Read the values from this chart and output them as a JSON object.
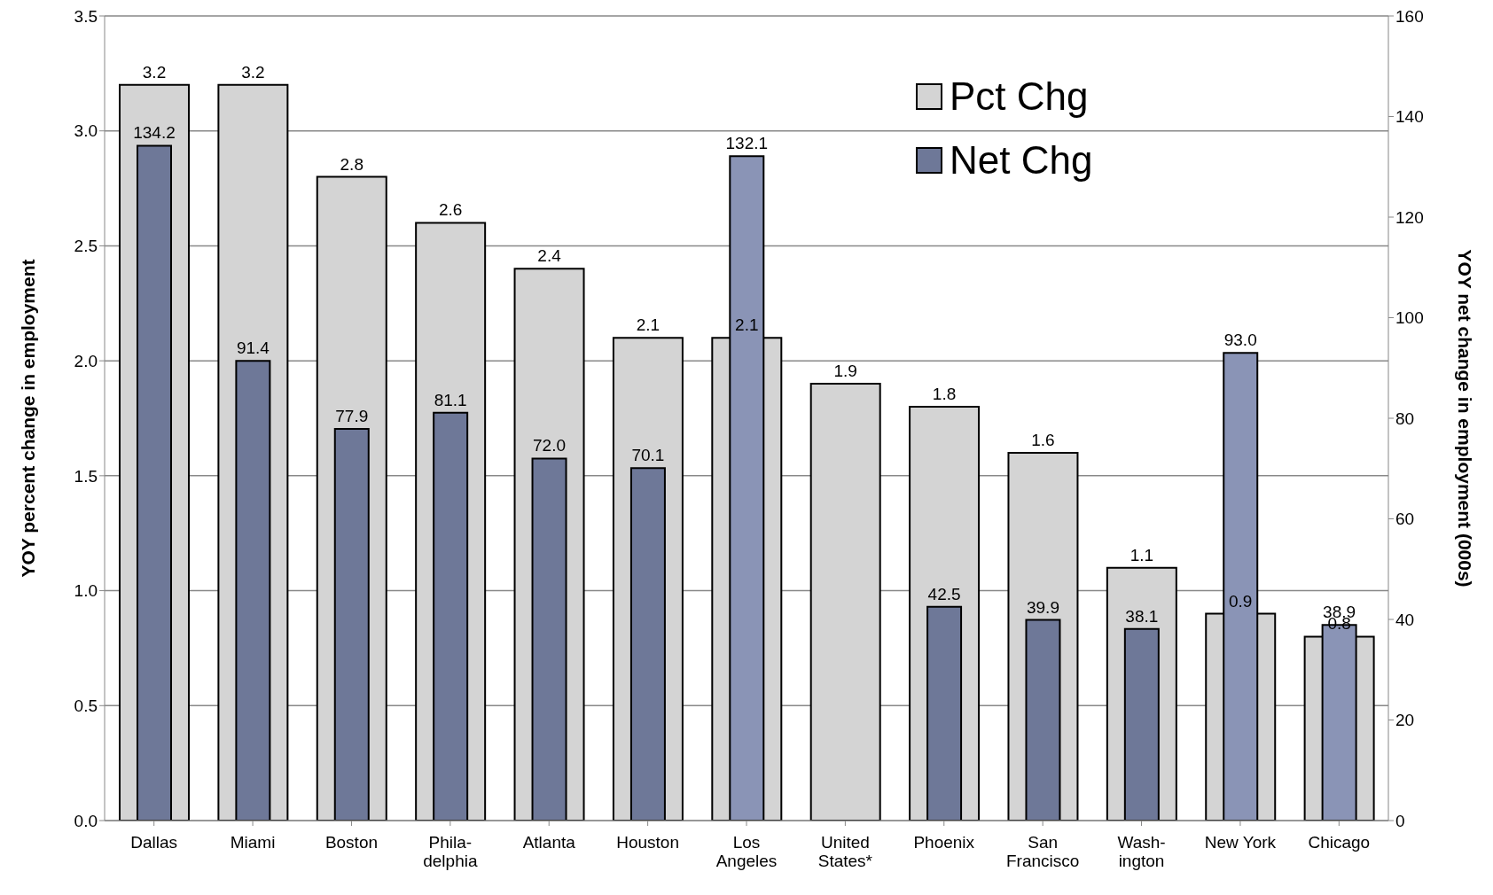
{
  "chart_data": {
    "type": "bar",
    "ylabel": "YOY percent change in employment",
    "y2label": "YOY net change in employment (000s)",
    "categories": [
      "Dallas",
      "Miami",
      "Boston",
      "Phila-\ndelphia",
      "Atlanta",
      "Houston",
      "Los\nAngeles",
      "United\nStates*",
      "Phoenix",
      "San\nFrancisco",
      "Wash-\nington",
      "New York",
      "Chicago"
    ],
    "series": [
      {
        "name": "Pct Chg",
        "color": "#d4d4d4",
        "values": [
          3.2,
          3.2,
          2.8,
          2.6,
          2.4,
          2.1,
          2.1,
          1.9,
          1.8,
          1.6,
          1.1,
          0.9,
          0.8
        ],
        "value_labels": [
          "3.2",
          "3.2",
          "2.8",
          "2.6",
          "2.4",
          "2.1",
          "2.1",
          "1.9",
          "1.8",
          "1.6",
          "1.1",
          "0.9",
          "0.8"
        ]
      },
      {
        "name": "Net Chg",
        "color": "#6e7898",
        "axis": "y2",
        "colors": [
          "#6e7898",
          "#6e7898",
          "#6e7898",
          "#6e7898",
          "#6e7898",
          "#6e7898",
          "#8a94b6",
          "#6e7898",
          "#6e7898",
          "#6e7898",
          "#6e7898",
          "#8a94b6",
          "#8a94b6"
        ],
        "values": [
          134.2,
          91.4,
          77.9,
          81.1,
          72.0,
          70.1,
          132.1,
          null,
          42.5,
          39.9,
          38.1,
          93.0,
          38.9
        ],
        "value_labels": [
          "134.2",
          "91.4",
          "77.9",
          "81.1",
          "72.0",
          "70.1",
          "132.1",
          null,
          "42.5",
          "39.9",
          "38.1",
          "93.0",
          "38.9"
        ]
      }
    ],
    "ylim": [
      0,
      3.5
    ],
    "yticks": [
      {
        "value": 0,
        "label": "0.0"
      },
      {
        "value": 0.5,
        "label": "0.5"
      },
      {
        "value": 1,
        "label": "1.0"
      },
      {
        "value": 1.5,
        "label": "1.5"
      },
      {
        "value": 2,
        "label": "2.0"
      },
      {
        "value": 2.5,
        "label": "2.5"
      },
      {
        "value": 3,
        "label": "3.0"
      },
      {
        "value": 3.5,
        "label": "3.5"
      }
    ],
    "y2lim": [
      0,
      160
    ],
    "y2ticks": [
      0,
      20,
      40,
      60,
      80,
      100,
      120,
      140,
      160
    ],
    "grid": "y",
    "legend": "top right"
  }
}
